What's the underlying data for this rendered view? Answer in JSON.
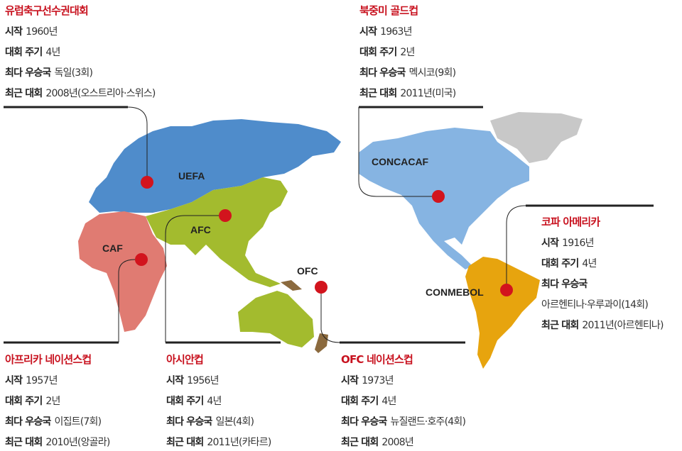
{
  "colors": {
    "uefa": "#4f8ccb",
    "caf": "#e07b72",
    "afc": "#a3bb2e",
    "ofc": "#8b6a3e",
    "concacaf": "#86b4e2",
    "conmebol": "#e7a40e",
    "greenland": "#c8c8c8",
    "marker": "#d2141d",
    "title": "#c8121f"
  },
  "regions": {
    "uefa": "UEFA",
    "caf": "CAF",
    "afc": "AFC",
    "ofc": "OFC",
    "concacaf": "CONCACAF",
    "conmebol": "CONMEBOL"
  },
  "blocks": {
    "euro": {
      "title": "유럽축구선수권대회",
      "rows": [
        {
          "k": "시작",
          "v": "1960년"
        },
        {
          "k": "대회 주기",
          "v": "4년"
        },
        {
          "k": "최다 우승국",
          "v": "독일(3회)"
        },
        {
          "k": "최근 대회",
          "v": "2008년(오스트리아·스위스)"
        }
      ]
    },
    "gold": {
      "title": "북중미 골드컵",
      "rows": [
        {
          "k": "시작",
          "v": "1963년"
        },
        {
          "k": "대회 주기",
          "v": "2년"
        },
        {
          "k": "최다 우승국",
          "v": "멕시코(9회)"
        },
        {
          "k": "최근 대회",
          "v": "2011년(미국)"
        }
      ]
    },
    "copa": {
      "title": "코파 아메리카",
      "rows": [
        {
          "k": "시작",
          "v": "1916년"
        },
        {
          "k": "대회 주기",
          "v": "4년"
        },
        {
          "k": "최다 우승국",
          "v": ""
        },
        {
          "k": "",
          "v": "아르헨티나·우루과이(14회)"
        },
        {
          "k": "최근 대회",
          "v": "2011년(아르헨티나)"
        }
      ]
    },
    "africa": {
      "title": "아프리카 네이션스컵",
      "rows": [
        {
          "k": "시작",
          "v": "1957년"
        },
        {
          "k": "대회 주기",
          "v": "2년"
        },
        {
          "k": "최다 우승국",
          "v": "이집트(7회)"
        },
        {
          "k": "최근 대회",
          "v": "2010년(앙골라)"
        }
      ]
    },
    "asia": {
      "title": "아시안컵",
      "rows": [
        {
          "k": "시작",
          "v": "1956년"
        },
        {
          "k": "대회 주기",
          "v": "4년"
        },
        {
          "k": "최다 우승국",
          "v": "일본(4회)"
        },
        {
          "k": "최근 대회",
          "v": "2011년(카타르)"
        }
      ]
    },
    "ofc": {
      "title": "OFC 네이션스컵",
      "rows": [
        {
          "k": "시작",
          "v": "1973년"
        },
        {
          "k": "대회 주기",
          "v": "4년"
        },
        {
          "k": "최다 우승국",
          "v": "뉴질랜드·호주(4회)"
        },
        {
          "k": "최근 대회",
          "v": "2008년"
        }
      ]
    }
  }
}
